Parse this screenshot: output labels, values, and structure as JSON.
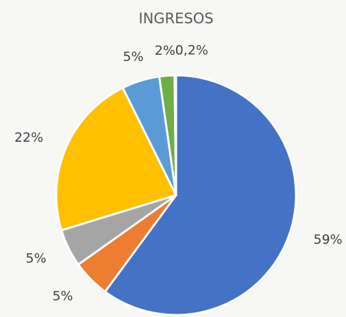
{
  "chart_data": {
    "type": "pie",
    "title": "INGRESOS",
    "values": [
      59,
      5,
      5,
      22,
      5,
      2,
      0.2
    ],
    "value_labels": [
      "59%",
      "5%",
      "5%",
      "22%",
      "5%",
      "2%",
      "0,2%"
    ],
    "colors": [
      "#4472c4",
      "#ed7d31",
      "#a5a5a5",
      "#ffc000",
      "#5b9bd5",
      "#70ad47",
      "#264478"
    ]
  }
}
